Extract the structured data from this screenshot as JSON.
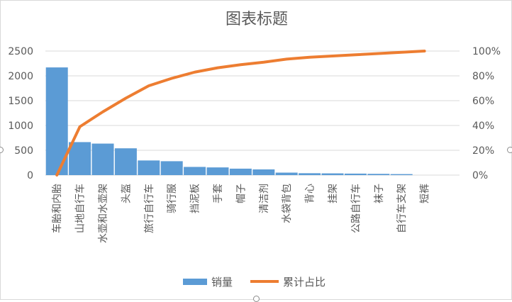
{
  "chart_data": {
    "type": "bar",
    "title": "图表标题",
    "categories": [
      "车胎和内胎",
      "山地自行车",
      "水壶和水壶架",
      "头盔",
      "旅行自行车",
      "骑行服",
      "挡泥板",
      "手套",
      "帽子",
      "清洁剂",
      "水袋背包",
      "背心",
      "挂架",
      "公路自行车",
      "袜子",
      "自行车支架",
      "短裤"
    ],
    "series": [
      {
        "name": "销量",
        "type": "bar",
        "axis": "left",
        "color": "#5b9bd5",
        "values": [
          2170,
          665,
          635,
          540,
          295,
          280,
          165,
          155,
          130,
          115,
          50,
          38,
          35,
          30,
          25,
          20,
          0
        ]
      },
      {
        "name": "累计占比",
        "type": "line",
        "axis": "right",
        "color": "#ed7d31",
        "values": [
          0.0,
          0.39,
          0.51,
          0.62,
          0.72,
          0.78,
          0.83,
          0.865,
          0.89,
          0.91,
          0.935,
          0.95,
          0.96,
          0.97,
          0.98,
          0.99,
          1.0
        ]
      }
    ],
    "y_left": {
      "min": 0,
      "max": 2500,
      "ticks": [
        0,
        500,
        1000,
        1500,
        2000,
        2500
      ]
    },
    "y_right": {
      "min": 0,
      "max": 1,
      "ticks": [
        "0%",
        "20%",
        "40%",
        "60%",
        "80%",
        "100%"
      ]
    },
    "grid": true,
    "legend": "bottom"
  }
}
